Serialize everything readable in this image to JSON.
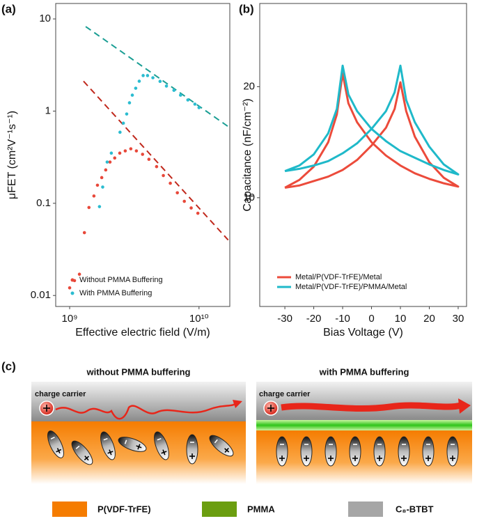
{
  "chart_data": [
    {
      "type": "scatter",
      "panel_label": "(a)",
      "x_label": "Effective electric field (V/m)",
      "y_label": "μFET (cm²V⁻¹s⁻¹)",
      "xlog": true,
      "ylog": true,
      "xlim": [
        780000000,
        17300000000
      ],
      "ylim": [
        0.0076,
        14.7
      ],
      "xticks": [
        {
          "value": 1000000000,
          "label": "10⁹"
        },
        {
          "value": 10000000000,
          "label": "10¹⁰"
        }
      ],
      "yticks": [
        0.01,
        0.1,
        1,
        10
      ],
      "legend": "lower left",
      "series": [
        {
          "name": "Without PMMA Buffering",
          "color": "#e8483a",
          "x": [
            1000000000,
            1090000000,
            1190000000,
            1300000000,
            1410000000,
            1540000000,
            1640000000,
            1770000000,
            1900000000,
            2050000000,
            2230000000,
            2440000000,
            2690000000,
            2970000000,
            3280000000,
            3660000000,
            4100000000,
            4700000000,
            5300000000,
            6000000000,
            6800000000,
            7700000000,
            8700000000,
            9800000000
          ],
          "values": [
            0.0121,
            0.0145,
            0.017,
            0.048,
            0.09,
            0.12,
            0.157,
            0.19,
            0.23,
            0.28,
            0.31,
            0.35,
            0.37,
            0.39,
            0.37,
            0.34,
            0.3,
            0.25,
            0.2,
            0.165,
            0.13,
            0.105,
            0.089,
            0.078
          ]
        },
        {
          "name": "With PMMA Buffering",
          "color": "#2bbcd0",
          "x": [
            1700000000,
            1800000000,
            1950000000,
            2100000000,
            2450000000,
            2600000000,
            2760000000,
            2900000000,
            3050000000,
            3240000000,
            3450000000,
            3700000000,
            4000000000,
            4400000000,
            5000000000,
            5600000000,
            6400000000,
            7200000000,
            8200000000,
            9300000000,
            10000000000
          ],
          "values": [
            0.092,
            0.15,
            0.28,
            0.35,
            0.59,
            0.74,
            0.93,
            1.23,
            1.49,
            1.77,
            2.11,
            2.43,
            2.43,
            2.3,
            2.1,
            1.87,
            1.68,
            1.49,
            1.32,
            1.19,
            1.09
          ]
        }
      ],
      "fits": [
        {
          "color": "#1a9e94",
          "x": [
            1330000000,
            16800000000
          ],
          "values": [
            8.26,
            0.68
          ]
        },
        {
          "color": "#c0281c",
          "x": [
            1280000000,
            16800000000
          ],
          "values": [
            2.11,
            0.04
          ]
        }
      ]
    },
    {
      "type": "line",
      "panel_label": "(b)",
      "x_label": "Bias Voltage (V)",
      "y_label": "Capacitance (nF/cm⁻²)",
      "xlim": [
        -38.7,
        32.9
      ],
      "ylim": [
        0.2,
        27.5
      ],
      "xticks": [
        -30,
        -20,
        -10,
        0,
        10,
        20,
        30
      ],
      "yticks": [
        10,
        20
      ],
      "legend": "lower left",
      "x": [
        -30,
        -25,
        -20,
        -15,
        -12,
        -10,
        -8,
        -5,
        0,
        5,
        10,
        15,
        20,
        25,
        30,
        30,
        25,
        20,
        15,
        12,
        10,
        8,
        5,
        0,
        -5,
        -10,
        -15,
        -20,
        -25,
        -30
      ],
      "series": [
        {
          "name": "Metal/P(VDF-TrFE)/Metal",
          "color": "#ec4b3b",
          "values": [
            10.9,
            11.6,
            12.8,
            15.0,
            17.5,
            21.2,
            18.5,
            16.8,
            15.0,
            13.8,
            12.9,
            12.2,
            11.7,
            11.3,
            11.0,
            11.0,
            11.8,
            13.2,
            15.5,
            17.8,
            20.4,
            18.0,
            16.3,
            14.7,
            13.4,
            12.5,
            11.9,
            11.5,
            11.1,
            10.9
          ]
        },
        {
          "name": "Metal/P(VDF-TrFE)/PMMA/Metal",
          "color": "#1fb9c9",
          "values": [
            12.4,
            12.9,
            13.9,
            15.8,
            18.0,
            21.9,
            19.3,
            17.8,
            16.2,
            15.1,
            14.2,
            13.6,
            13.0,
            12.5,
            12.1,
            12.1,
            13.0,
            14.6,
            16.8,
            18.8,
            21.9,
            19.5,
            17.8,
            16.2,
            14.9,
            14.0,
            13.3,
            12.9,
            12.6,
            12.4
          ]
        }
      ]
    }
  ],
  "diagram": {
    "panel_label": "(c)",
    "left_title": "without PMMA buffering",
    "right_title": "with PMMA buffering",
    "left_carrier": "charge carrier",
    "right_carrier": "charge carrier",
    "legend": [
      "P(VDF-TrFE)",
      "PMMA",
      "C₈-BTBT"
    ]
  }
}
